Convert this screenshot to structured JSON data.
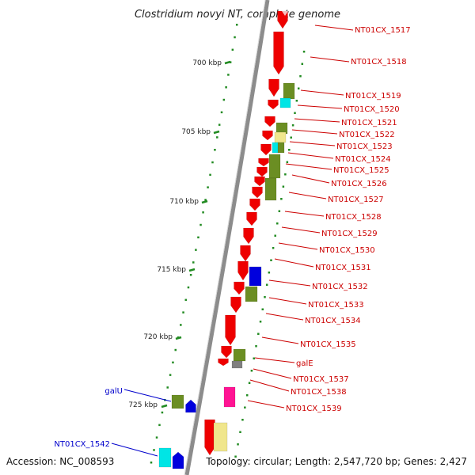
{
  "title": "Clostridium novyi NT, complete genome",
  "accession": "Accession: NC_008593",
  "topology": "Topology: circular; Length: 2,547,720 bp; Genes: 2,427",
  "colors": {
    "label_red": "#cc0000",
    "label_blue": "#0000cc",
    "gene_red": "#ee0000",
    "gene_olive": "#6b8e23",
    "gene_pale_yellow": "#f0e68c",
    "gene_cyan": "#00e5e5",
    "gene_blue": "#0000dd",
    "gene_magenta": "#ff1493",
    "gene_gray": "#808080",
    "tick_green": "#228b22",
    "backbone": "#909090"
  },
  "kbp_ticks": [
    "700 kbp",
    "705 kbp",
    "710 kbp",
    "715 kbp",
    "720 kbp",
    "725 kbp"
  ],
  "gene_labels": [
    {
      "text": "NT01CX_1517",
      "color": "red"
    },
    {
      "text": "NT01CX_1518",
      "color": "red"
    },
    {
      "text": "NT01CX_1519",
      "color": "red"
    },
    {
      "text": "NT01CX_1520",
      "color": "red"
    },
    {
      "text": "NT01CX_1521",
      "color": "red"
    },
    {
      "text": "NT01CX_1522",
      "color": "red"
    },
    {
      "text": "NT01CX_1523",
      "color": "red"
    },
    {
      "text": "NT01CX_1524",
      "color": "red"
    },
    {
      "text": "NT01CX_1525",
      "color": "red"
    },
    {
      "text": "NT01CX_1526",
      "color": "red"
    },
    {
      "text": "NT01CX_1527",
      "color": "red"
    },
    {
      "text": "NT01CX_1528",
      "color": "red"
    },
    {
      "text": "NT01CX_1529",
      "color": "red"
    },
    {
      "text": "NT01CX_1530",
      "color": "red"
    },
    {
      "text": "NT01CX_1531",
      "color": "red"
    },
    {
      "text": "NT01CX_1532",
      "color": "red"
    },
    {
      "text": "NT01CX_1533",
      "color": "red"
    },
    {
      "text": "NT01CX_1534",
      "color": "red"
    },
    {
      "text": "NT01CX_1535",
      "color": "red"
    },
    {
      "text": "galE",
      "color": "red"
    },
    {
      "text": "NT01CX_1537",
      "color": "red"
    },
    {
      "text": "NT01CX_1538",
      "color": "red"
    },
    {
      "text": "NT01CX_1539",
      "color": "red"
    },
    {
      "text": "galU",
      "color": "blue"
    },
    {
      "text": "NT01CX_1542",
      "color": "blue"
    }
  ]
}
